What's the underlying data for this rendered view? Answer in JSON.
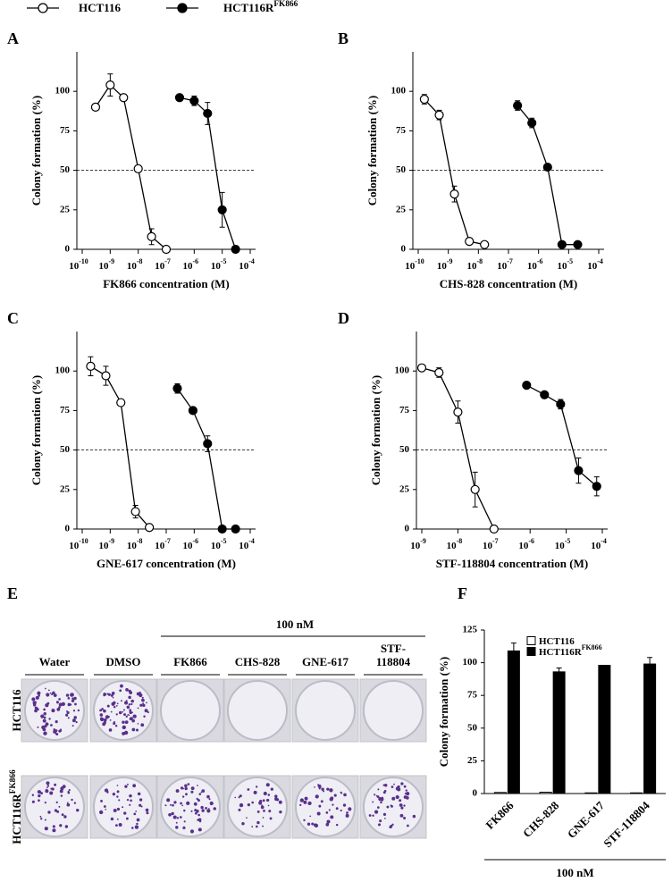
{
  "chart_data": [
    {
      "type": "line",
      "panel": "A",
      "xlabel": "FK866 concentration (M)",
      "ylabel": "Colony formation (%)",
      "xscale": "log",
      "xlim": [
        1e-10,
        0.0001
      ],
      "xticks": [
        {
          "value": 1e-10,
          "label": "10",
          "exponent": "-10"
        },
        {
          "value": 1e-09,
          "label": "10",
          "exponent": "-9"
        },
        {
          "value": 1e-08,
          "label": "10",
          "exponent": "-8"
        },
        {
          "value": 1e-07,
          "label": "10",
          "exponent": "-7"
        },
        {
          "value": 1e-06,
          "label": "10",
          "exponent": "-6"
        },
        {
          "value": 1e-05,
          "label": "10",
          "exponent": "-5"
        },
        {
          "value": 0.0001,
          "label": "10",
          "exponent": "-4"
        }
      ],
      "ylim": [
        0,
        125
      ],
      "yticks": [
        0,
        25,
        50,
        75,
        100
      ],
      "reference_line": 50,
      "series": [
        {
          "name": "HCT116",
          "color": "#ffffff",
          "x": [
            3e-10,
            1e-09,
            3e-09,
            1e-08,
            3e-08,
            1e-07
          ],
          "values": [
            90,
            104,
            96,
            51,
            8,
            0
          ],
          "errors": [
            null,
            7,
            null,
            2,
            5,
            null
          ]
        },
        {
          "name": "HCT116R",
          "name_superscript": "FK866",
          "color": "#000000",
          "x": [
            3e-07,
            1e-06,
            3e-06,
            1e-05,
            3e-05
          ],
          "values": [
            96,
            94,
            86,
            25,
            0
          ],
          "errors": [
            2,
            3,
            7,
            11,
            null
          ]
        }
      ]
    },
    {
      "type": "line",
      "panel": "B",
      "xlabel": "CHS-828 concentration (M)",
      "ylabel": "Colony formation (%)",
      "xscale": "log",
      "xlim": [
        1e-10,
        0.0001
      ],
      "xticks": [
        {
          "value": 1e-10,
          "label": "10",
          "exponent": "-10"
        },
        {
          "value": 1e-09,
          "label": "10",
          "exponent": "-9"
        },
        {
          "value": 1e-08,
          "label": "10",
          "exponent": "-8"
        },
        {
          "value": 1e-07,
          "label": "10",
          "exponent": "-7"
        },
        {
          "value": 1e-06,
          "label": "10",
          "exponent": "-6"
        },
        {
          "value": 1e-05,
          "label": "10",
          "exponent": "-5"
        },
        {
          "value": 0.0001,
          "label": "10",
          "exponent": "-4"
        }
      ],
      "ylim": [
        0,
        125
      ],
      "yticks": [
        0,
        25,
        50,
        75,
        100
      ],
      "reference_line": 50,
      "series": [
        {
          "color": "#ffffff",
          "x": [
            1.6e-10,
            5e-10,
            1.6e-09,
            5e-09,
            1.6e-08
          ],
          "values": [
            95,
            85,
            35,
            5,
            3
          ],
          "errors": [
            3,
            3,
            5,
            null,
            null
          ]
        },
        {
          "color": "#000000",
          "x": [
            2e-07,
            6e-07,
            2e-06,
            6e-06,
            2e-05
          ],
          "values": [
            91,
            80,
            52,
            3,
            3
          ],
          "errors": [
            3,
            3,
            null,
            null,
            null
          ]
        }
      ]
    },
    {
      "type": "line",
      "panel": "C",
      "xlabel": "GNE-617 concentration (M)",
      "ylabel": "Colony formation (%)",
      "xscale": "log",
      "xlim": [
        1e-10,
        0.0001
      ],
      "xticks": [
        {
          "value": 1e-10,
          "label": "10",
          "exponent": "-10"
        },
        {
          "value": 1e-09,
          "label": "10",
          "exponent": "-9"
        },
        {
          "value": 1e-08,
          "label": "10",
          "exponent": "-8"
        },
        {
          "value": 1e-07,
          "label": "10",
          "exponent": "-7"
        },
        {
          "value": 1e-06,
          "label": "10",
          "exponent": "-6"
        },
        {
          "value": 1e-05,
          "label": "10",
          "exponent": "-5"
        },
        {
          "value": 0.0001,
          "label": "10",
          "exponent": "-4"
        }
      ],
      "ylim": [
        0,
        125
      ],
      "yticks": [
        0,
        25,
        50,
        75,
        100
      ],
      "reference_line": 50,
      "series": [
        {
          "color": "#ffffff",
          "x": [
            2e-10,
            7e-10,
            2.4e-09,
            8e-09,
            2.5e-08
          ],
          "values": [
            103,
            97,
            80,
            11,
            1
          ],
          "errors": [
            6,
            6,
            null,
            4,
            null
          ]
        },
        {
          "color": "#000000",
          "x": [
            2.5e-07,
            9e-07,
            3e-06,
            1e-05,
            3e-05
          ],
          "values": [
            89,
            75,
            54,
            0,
            0
          ],
          "errors": [
            3,
            null,
            5,
            null,
            null
          ]
        }
      ]
    },
    {
      "type": "line",
      "panel": "D",
      "xlabel": "STF-118804 concentration (M)",
      "ylabel": "Colony formation (%)",
      "xscale": "log",
      "xlim": [
        1e-09,
        0.0001
      ],
      "xticks": [
        {
          "value": 1e-09,
          "label": "10",
          "exponent": "-9"
        },
        {
          "value": 1e-08,
          "label": "10",
          "exponent": "-8"
        },
        {
          "value": 1e-07,
          "label": "10",
          "exponent": "-7"
        },
        {
          "value": 1e-06,
          "label": "10",
          "exponent": "-6"
        },
        {
          "value": 1e-05,
          "label": "10",
          "exponent": "-5"
        },
        {
          "value": 0.0001,
          "label": "10",
          "exponent": "-4"
        }
      ],
      "ylim": [
        0,
        125
      ],
      "yticks": [
        0,
        25,
        50,
        75,
        100
      ],
      "reference_line": 50,
      "series": [
        {
          "color": "#ffffff",
          "x": [
            1e-09,
            3e-09,
            1e-08,
            3e-08,
            1e-07
          ],
          "values": [
            102,
            99,
            74,
            25,
            0
          ],
          "errors": [
            null,
            3,
            7,
            11,
            null
          ]
        },
        {
          "color": "#000000",
          "x": [
            8e-07,
            2.5e-06,
            7e-06,
            2.2e-05,
            7e-05
          ],
          "values": [
            91,
            85,
            79,
            37,
            27
          ],
          "errors": [
            null,
            null,
            3,
            8,
            6
          ]
        }
      ]
    },
    {
      "type": "bar",
      "panel": "F",
      "ylabel": "Colony formation (%)",
      "xlabel": "100 nM",
      "categories": [
        "FK866",
        "CHS-828",
        "GNE-617",
        "STF-118804"
      ],
      "ylim": [
        0,
        125
      ],
      "yticks": [
        0,
        25,
        50,
        75,
        100,
        125
      ],
      "legend": "upper center",
      "series": [
        {
          "name": "HCT116",
          "color": "#ffffff",
          "values": [
            0.8,
            1,
            0.5,
            0.5
          ],
          "errors": [
            null,
            null,
            null,
            null
          ]
        },
        {
          "name": "HCT116R",
          "name_superscript": "FK866",
          "color": "#000000",
          "values": [
            109,
            93,
            98,
            99
          ],
          "errors": [
            6,
            3,
            null,
            5
          ]
        }
      ]
    }
  ],
  "panel_e": {
    "panel": "E",
    "group_label": "100 nM",
    "columns": [
      [
        "Water"
      ],
      [
        "DMSO"
      ],
      [
        "FK866"
      ],
      [
        "CHS-828"
      ],
      [
        "GNE-617"
      ],
      [
        "STF-",
        "118804"
      ]
    ],
    "rows": [
      {
        "name": "HCT116"
      },
      {
        "name": "HCT116R",
        "name_superscript": "FK866"
      }
    ]
  }
}
